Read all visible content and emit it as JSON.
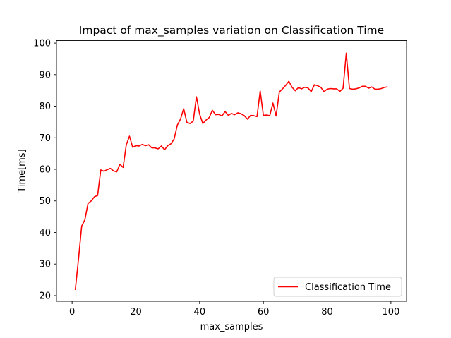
{
  "chart_data": {
    "type": "line",
    "title": "Impact of max_samples variation on Classification Time",
    "xlabel": "max_samples",
    "ylabel": "Time[ms]",
    "xlim": [
      -4.9,
      104.9
    ],
    "ylim": [
      18.2,
      100.8
    ],
    "xticks": [
      0,
      20,
      40,
      60,
      80,
      100
    ],
    "yticks": [
      20,
      30,
      40,
      50,
      60,
      70,
      80,
      90,
      100
    ],
    "grid": false,
    "legend_position": "lower right",
    "series": [
      {
        "name": "Classification Time",
        "color": "#ff0000",
        "x": [
          1,
          2,
          3,
          4,
          5,
          6,
          7,
          8,
          9,
          10,
          11,
          12,
          13,
          14,
          15,
          16,
          17,
          18,
          19,
          20,
          21,
          22,
          23,
          24,
          25,
          26,
          27,
          28,
          29,
          30,
          31,
          32,
          33,
          34,
          35,
          36,
          37,
          38,
          39,
          40,
          41,
          42,
          43,
          44,
          45,
          46,
          47,
          48,
          49,
          50,
          51,
          52,
          53,
          54,
          55,
          56,
          57,
          58,
          59,
          60,
          61,
          62,
          63,
          64,
          65,
          66,
          67,
          68,
          69,
          70,
          71,
          72,
          73,
          74,
          75,
          76,
          77,
          78,
          79,
          80,
          81,
          82,
          83,
          84,
          85,
          86,
          87,
          88,
          89,
          90,
          91,
          92,
          93,
          94,
          95,
          96,
          97,
          98,
          99
        ],
        "values": [
          21.8,
          31.5,
          42.0,
          44.0,
          49.2,
          50.0,
          51.3,
          51.7,
          59.8,
          59.4,
          59.9,
          60.3,
          59.5,
          59.2,
          61.6,
          60.6,
          67.8,
          70.5,
          67.0,
          67.5,
          67.4,
          67.9,
          67.5,
          67.8,
          66.8,
          66.8,
          66.5,
          67.4,
          66.2,
          67.5,
          68.1,
          69.6,
          74.0,
          75.9,
          79.2,
          74.9,
          74.5,
          75.3,
          83.0,
          77.5,
          74.5,
          75.6,
          76.4,
          78.7,
          77.3,
          77.4,
          76.9,
          78.3,
          77.1,
          77.7,
          77.3,
          77.9,
          77.6,
          77.0,
          75.9,
          77.1,
          77.0,
          76.7,
          84.8,
          77.1,
          77.2,
          77.0,
          81.0,
          76.9,
          84.5,
          85.5,
          86.6,
          87.9,
          86.0,
          84.9,
          85.9,
          85.5,
          86.0,
          85.8,
          84.6,
          86.8,
          86.5,
          86.0,
          84.6,
          85.4,
          85.6,
          85.5,
          85.5,
          84.7,
          85.7,
          96.8,
          85.6,
          85.4,
          85.5,
          85.8,
          86.3,
          86.3,
          85.7,
          86.1,
          85.4,
          85.4,
          85.6,
          86.0,
          86.1
        ]
      }
    ]
  }
}
